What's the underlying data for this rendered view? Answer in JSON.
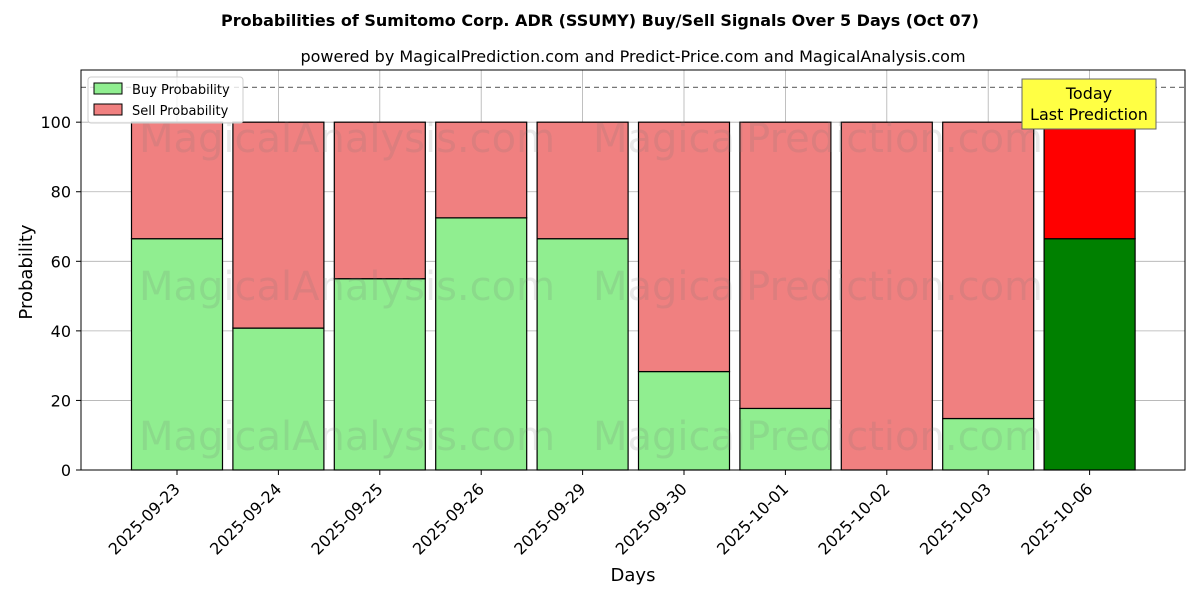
{
  "title": "Probabilities of Sumitomo Corp. ADR (SSUMY) Buy/Sell Signals Over 5 Days (Oct 07)",
  "subtitle": "powered by MagicalPrediction.com and Predict-Price.com and MagicalAnalysis.com",
  "watermarks": [
    "MagicalAnalysis.com",
    "MagicalPrediction.com"
  ],
  "annotation": {
    "line1": "Today",
    "line2": "Last Prediction",
    "fill": "#ffff44"
  },
  "colors": {
    "buy": "#90ee90",
    "sell": "#f08080",
    "buy_today": "#008000",
    "sell_today": "#ff0000"
  },
  "chart_data": {
    "type": "bar",
    "stacked": true,
    "xlabel": "Days",
    "ylabel": "Probability",
    "ylim": [
      0,
      115
    ],
    "yticks": [
      0,
      20,
      40,
      60,
      80,
      100
    ],
    "reference_line": 110,
    "grid": true,
    "legend_position": "top-left",
    "categories": [
      "2025-09-23",
      "2025-09-24",
      "2025-09-25",
      "2025-09-26",
      "2025-09-29",
      "2025-09-30",
      "2025-10-01",
      "2025-10-02",
      "2025-10-03",
      "2025-10-06"
    ],
    "series": [
      {
        "name": "Buy Probability",
        "values": [
          66.5,
          40.8,
          55.0,
          72.5,
          66.5,
          28.3,
          17.7,
          0,
          14.8,
          66.5
        ]
      },
      {
        "name": "Sell Probability",
        "values": [
          33.5,
          59.2,
          45.0,
          27.5,
          33.5,
          71.7,
          82.3,
          100,
          85.2,
          33.5
        ]
      }
    ]
  }
}
